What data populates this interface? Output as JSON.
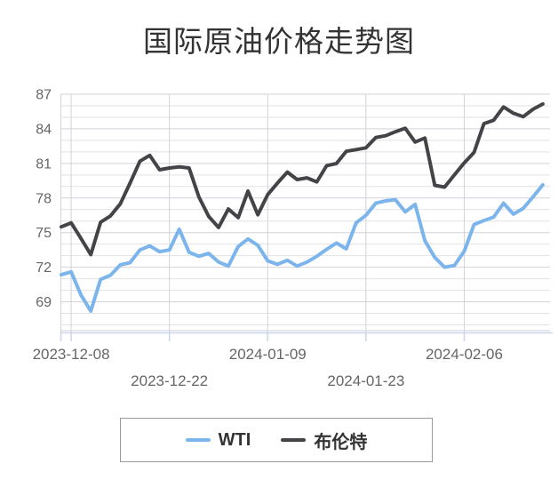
{
  "title": "国际原油价格走势图",
  "legend": {
    "items": [
      {
        "key": "wti",
        "label": "WTI",
        "color": "#7cb5ec"
      },
      {
        "key": "brent",
        "label": "布伦特",
        "color": "#434348"
      }
    ]
  },
  "colors": {
    "background": "#ffffff",
    "title": "#333333",
    "axis_label": "#666666",
    "grid_minor": "#e2e2e6",
    "grid_major": "#d2d2da",
    "axis_line": "#ccd6eb",
    "legend_border": "#999999",
    "wti": "#7cb5ec",
    "brent": "#434348"
  },
  "chart_data": {
    "type": "line",
    "title": "国际原油价格走势图",
    "xlabel": "",
    "ylabel": "",
    "grid": true,
    "legend_position": "bottom",
    "ylim": [
      66.5,
      87
    ],
    "y_major_ticks": [
      69,
      72,
      75,
      78,
      81,
      84,
      87
    ],
    "y_minor_step": 1,
    "x_ticks": [
      {
        "index": 1,
        "label": "2023-12-08",
        "row": 0
      },
      {
        "index": 11,
        "label": "2023-12-22",
        "row": 1
      },
      {
        "index": 21,
        "label": "2024-01-09",
        "row": 0
      },
      {
        "index": 31,
        "label": "2024-01-23",
        "row": 1
      },
      {
        "index": 41,
        "label": "2024-02-06",
        "row": 0
      }
    ],
    "x": [
      "2023-12-07",
      "2023-12-08",
      "2023-12-11",
      "2023-12-12",
      "2023-12-13",
      "2023-12-14",
      "2023-12-15",
      "2023-12-18",
      "2023-12-19",
      "2023-12-20",
      "2023-12-21",
      "2023-12-22",
      "2023-12-26",
      "2023-12-27",
      "2023-12-28",
      "2023-12-29",
      "2024-01-02",
      "2024-01-03",
      "2024-01-04",
      "2024-01-05",
      "2024-01-08",
      "2024-01-09",
      "2024-01-10",
      "2024-01-11",
      "2024-01-12",
      "2024-01-15",
      "2024-01-16",
      "2024-01-17",
      "2024-01-18",
      "2024-01-19",
      "2024-01-22",
      "2024-01-23",
      "2024-01-24",
      "2024-01-25",
      "2024-01-26",
      "2024-01-29",
      "2024-01-30",
      "2024-01-31",
      "2024-02-01",
      "2024-02-02",
      "2024-02-05",
      "2024-02-06",
      "2024-02-07",
      "2024-02-08",
      "2024-02-09",
      "2024-02-12",
      "2024-02-13",
      "2024-02-14",
      "2024-02-15",
      "2024-02-16"
    ],
    "series": [
      {
        "name": "WTI",
        "color": "#7cb5ec",
        "values": [
          71.35,
          71.6,
          69.6,
          68.2,
          70.95,
          71.3,
          72.2,
          72.4,
          73.5,
          73.85,
          73.35,
          73.5,
          75.3,
          73.3,
          72.95,
          73.2,
          72.45,
          72.1,
          73.8,
          74.45,
          73.9,
          72.55,
          72.25,
          72.6,
          72.1,
          72.45,
          72.95,
          73.55,
          74.1,
          73.6,
          75.85,
          76.5,
          77.55,
          77.75,
          77.85,
          76.8,
          77.45,
          74.3,
          72.85,
          72.0,
          72.15,
          73.4,
          75.7,
          76.05,
          76.35,
          77.55,
          76.6,
          77.1,
          78.1,
          79.15
        ]
      },
      {
        "name": "布伦特",
        "color": "#434348",
        "values": [
          75.5,
          75.85,
          74.5,
          73.1,
          75.9,
          76.45,
          77.5,
          79.3,
          81.2,
          81.7,
          80.45,
          80.6,
          80.7,
          80.6,
          78.1,
          76.4,
          75.45,
          77.05,
          76.3,
          78.6,
          76.55,
          78.3,
          79.3,
          80.25,
          79.6,
          79.75,
          79.4,
          80.8,
          81.0,
          82.05,
          82.2,
          82.35,
          83.25,
          83.4,
          83.75,
          84.05,
          82.85,
          83.2,
          79.1,
          78.95,
          80.0,
          81.05,
          81.95,
          84.45,
          84.75,
          85.9,
          85.35,
          85.05,
          85.7,
          86.15
        ]
      }
    ]
  }
}
